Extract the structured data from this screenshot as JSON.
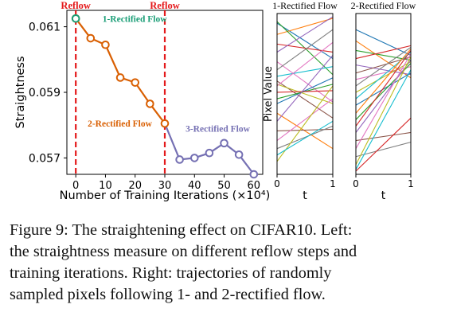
{
  "chart_data": [
    {
      "type": "line",
      "title": "",
      "xlabel": "Number of Training Iterations (×10⁴)",
      "ylabel": "Straightness",
      "xlim": [
        -3,
        63
      ],
      "ylim": [
        0.0565,
        0.0615
      ],
      "xticks": [
        0,
        10,
        20,
        30,
        40,
        50,
        60
      ],
      "yticks": [
        {
          "value": 0.057,
          "label": "0.057"
        },
        {
          "value": 0.059,
          "label": "0.059"
        },
        {
          "value": 0.061,
          "label": "0.061"
        }
      ],
      "reflow_lines": [
        {
          "x": 0,
          "label": "Reflow",
          "color": "#e41a1c"
        },
        {
          "x": 30,
          "label": "Reflow",
          "color": "#e41a1c"
        }
      ],
      "series": [
        {
          "name": "1-Rectified Flow",
          "color": "#1b9e77",
          "x": [
            0
          ],
          "values": [
            0.06125
          ],
          "label_at": [
            9,
            0.06125
          ]
        },
        {
          "name": "2-Rectified Flow",
          "color": "#d95f02",
          "x": [
            0,
            5,
            10,
            15,
            20,
            25,
            30
          ],
          "values": [
            0.06125,
            0.06065,
            0.06045,
            0.05945,
            0.0593,
            0.05865,
            0.05805
          ],
          "label_at": [
            4,
            0.05805
          ]
        },
        {
          "name": "3-Rectified Flow",
          "color": "#7570b3",
          "x": [
            30,
            35,
            40,
            45,
            50,
            55,
            60
          ],
          "values": [
            0.05805,
            0.05695,
            0.057,
            0.05715,
            0.05745,
            0.0571,
            0.0565
          ],
          "label_at": [
            37,
            0.0579
          ]
        }
      ]
    },
    {
      "type": "line",
      "title": "1-Rectified Flow",
      "xlabel": "t",
      "ylabel": "Pixel Value",
      "xticks": [
        0,
        1
      ],
      "trajectories": [
        {
          "start": 0.94,
          "end": 0.72,
          "color": "#1f77b4"
        },
        {
          "start": 0.87,
          "end": 0.97,
          "color": "#ff7f0e"
        },
        {
          "start": 0.95,
          "end": 0.62,
          "color": "#2ca02c"
        },
        {
          "start": 0.81,
          "end": 0.76,
          "color": "#d62728"
        },
        {
          "start": 0.76,
          "end": 0.98,
          "color": "#9467bd"
        },
        {
          "start": 0.58,
          "end": 0.35,
          "color": "#8c564b"
        },
        {
          "start": 0.7,
          "end": 0.45,
          "color": "#e377c2"
        },
        {
          "start": 0.65,
          "end": 0.9,
          "color": "#7f7f7f"
        },
        {
          "start": 0.56,
          "end": 0.44,
          "color": "#bcbd22"
        },
        {
          "start": 0.61,
          "end": 0.67,
          "color": "#17becf"
        },
        {
          "start": 0.44,
          "end": 0.6,
          "color": "#1f77b4"
        },
        {
          "start": 0.38,
          "end": 0.16,
          "color": "#ff7f0e"
        },
        {
          "start": 0.47,
          "end": 0.56,
          "color": "#2ca02c"
        },
        {
          "start": 0.51,
          "end": 0.52,
          "color": "#d62728"
        },
        {
          "start": 0.33,
          "end": 0.74,
          "color": "#9467bd"
        },
        {
          "start": 0.27,
          "end": 0.28,
          "color": "#8c564b"
        },
        {
          "start": 0.21,
          "end": 0.47,
          "color": "#e377c2"
        },
        {
          "start": 0.16,
          "end": 0.3,
          "color": "#7f7f7f"
        },
        {
          "start": 0.08,
          "end": 0.55,
          "color": "#bcbd22"
        },
        {
          "start": 0.12,
          "end": 0.33,
          "color": "#17becf"
        },
        {
          "start": 0.55,
          "end": 0.82,
          "color": "#e377c2"
        }
      ]
    },
    {
      "type": "line",
      "title": "2-Rectified Flow",
      "xlabel": "t",
      "ylabel": "",
      "xticks": [
        0,
        1
      ],
      "trajectories": [
        {
          "start": 0.9,
          "end": 0.74,
          "color": "#1f77b4"
        },
        {
          "start": 0.83,
          "end": 0.6,
          "color": "#ff7f0e"
        },
        {
          "start": 0.77,
          "end": 0.71,
          "color": "#2ca02c"
        },
        {
          "start": 0.72,
          "end": 0.8,
          "color": "#d62728"
        },
        {
          "start": 0.68,
          "end": 0.62,
          "color": "#9467bd"
        },
        {
          "start": 0.63,
          "end": 0.73,
          "color": "#8c564b"
        },
        {
          "start": 0.59,
          "end": 0.67,
          "color": "#e377c2"
        },
        {
          "start": 0.55,
          "end": 0.79,
          "color": "#7f7f7f"
        },
        {
          "start": 0.51,
          "end": 0.7,
          "color": "#bcbd22"
        },
        {
          "start": 0.47,
          "end": 0.76,
          "color": "#17becf"
        },
        {
          "start": 0.43,
          "end": 0.63,
          "color": "#1f77b4"
        },
        {
          "start": 0.38,
          "end": 0.78,
          "color": "#ff7f0e"
        },
        {
          "start": 0.34,
          "end": 0.69,
          "color": "#2ca02c"
        },
        {
          "start": 0.3,
          "end": 0.77,
          "color": "#d62728"
        },
        {
          "start": 0.26,
          "end": 0.71,
          "color": "#9467bd"
        },
        {
          "start": 0.21,
          "end": 0.26,
          "color": "#8c564b"
        },
        {
          "start": 0.16,
          "end": 0.75,
          "color": "#e377c2"
        },
        {
          "start": 0.11,
          "end": 0.2,
          "color": "#7f7f7f"
        },
        {
          "start": 0.06,
          "end": 0.73,
          "color": "#bcbd22"
        },
        {
          "start": 0.03,
          "end": 0.65,
          "color": "#17becf"
        },
        {
          "start": 0.02,
          "end": 0.35,
          "color": "#d62728"
        }
      ]
    }
  ],
  "caption": {
    "lines": [
      "Figure 9: The straightening effect on CIFAR10. Left:",
      "the straightness measure on different reflow steps and",
      "training iterations.  Right: trajectories of randomly",
      "sampled pixels following 1- and 2-rectified flow."
    ]
  }
}
